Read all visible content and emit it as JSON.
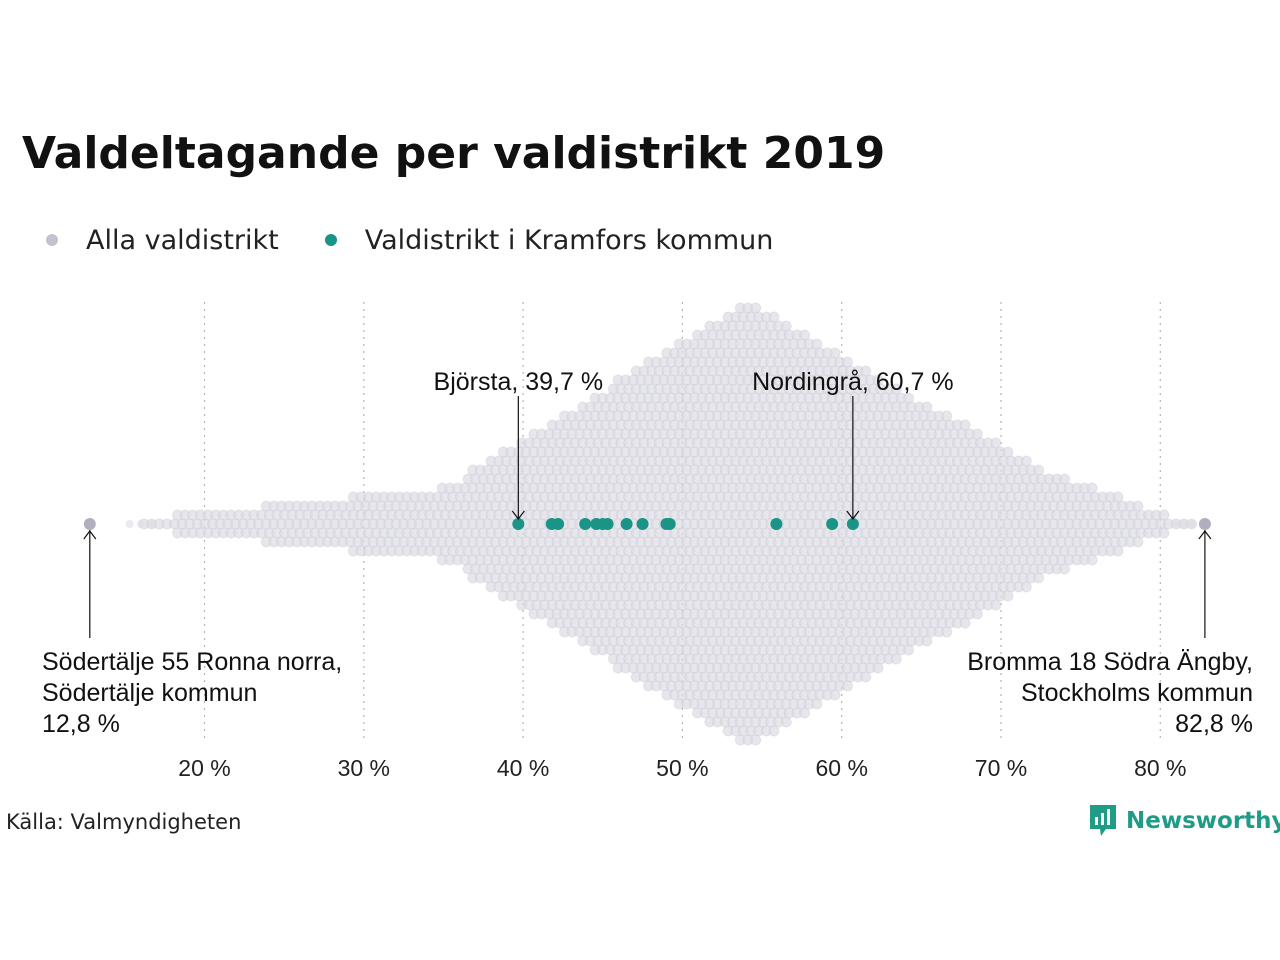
{
  "title": "Valdeltagande per valdistrikt 2019",
  "legend": {
    "all": "Alla valdistrikt",
    "highlight": "Valdistrikt i Kramfors kommun"
  },
  "source": "Källa: Valmyndigheten",
  "brand": "Newsworthy",
  "colors": {
    "all": "#c3c3cf",
    "all_fill": "#dcdce4",
    "highlight": "#1a9486",
    "grid": "#b5b5b5",
    "text": "#111111"
  },
  "chart_data": {
    "type": "scatter",
    "subtype": "beeswarm",
    "xlim": [
      10,
      85
    ],
    "x_ticks": [
      20,
      30,
      40,
      50,
      60,
      70,
      80
    ],
    "x_tick_labels": [
      "20 %",
      "30 %",
      "40 %",
      "50 %",
      "60 %",
      "70 %",
      "80 %"
    ],
    "grid": "vertical-dotted",
    "series": [
      {
        "name": "Alla valdistrikt",
        "values_summary": "distribution of turnout across all districts, peak near 54 %",
        "min": 12.8,
        "max": 82.8
      },
      {
        "name": "Valdistrikt i Kramfors kommun",
        "values": [
          39.7,
          41.8,
          42.2,
          43.9,
          44.6,
          45.0,
          45.3,
          46.5,
          47.5,
          49.0,
          49.2,
          55.9,
          59.4,
          60.7
        ]
      }
    ],
    "annotations": [
      {
        "lines": [
          "Björsta, 39,7 %"
        ],
        "x": 39.7,
        "position": "above",
        "align": "center"
      },
      {
        "lines": [
          "Nordingrå, 60,7 %"
        ],
        "x": 60.7,
        "position": "above",
        "align": "center"
      },
      {
        "lines": [
          "Södertälje 55 Ronna norra,",
          "Södertälje kommun",
          "12,8 %"
        ],
        "x": 12.8,
        "position": "below",
        "align": "left"
      },
      {
        "lines": [
          "Bromma 18 Södra Ängby,",
          "Stockholms kommun",
          "82,8 %"
        ],
        "x": 82.8,
        "position": "below",
        "align": "right"
      }
    ]
  }
}
